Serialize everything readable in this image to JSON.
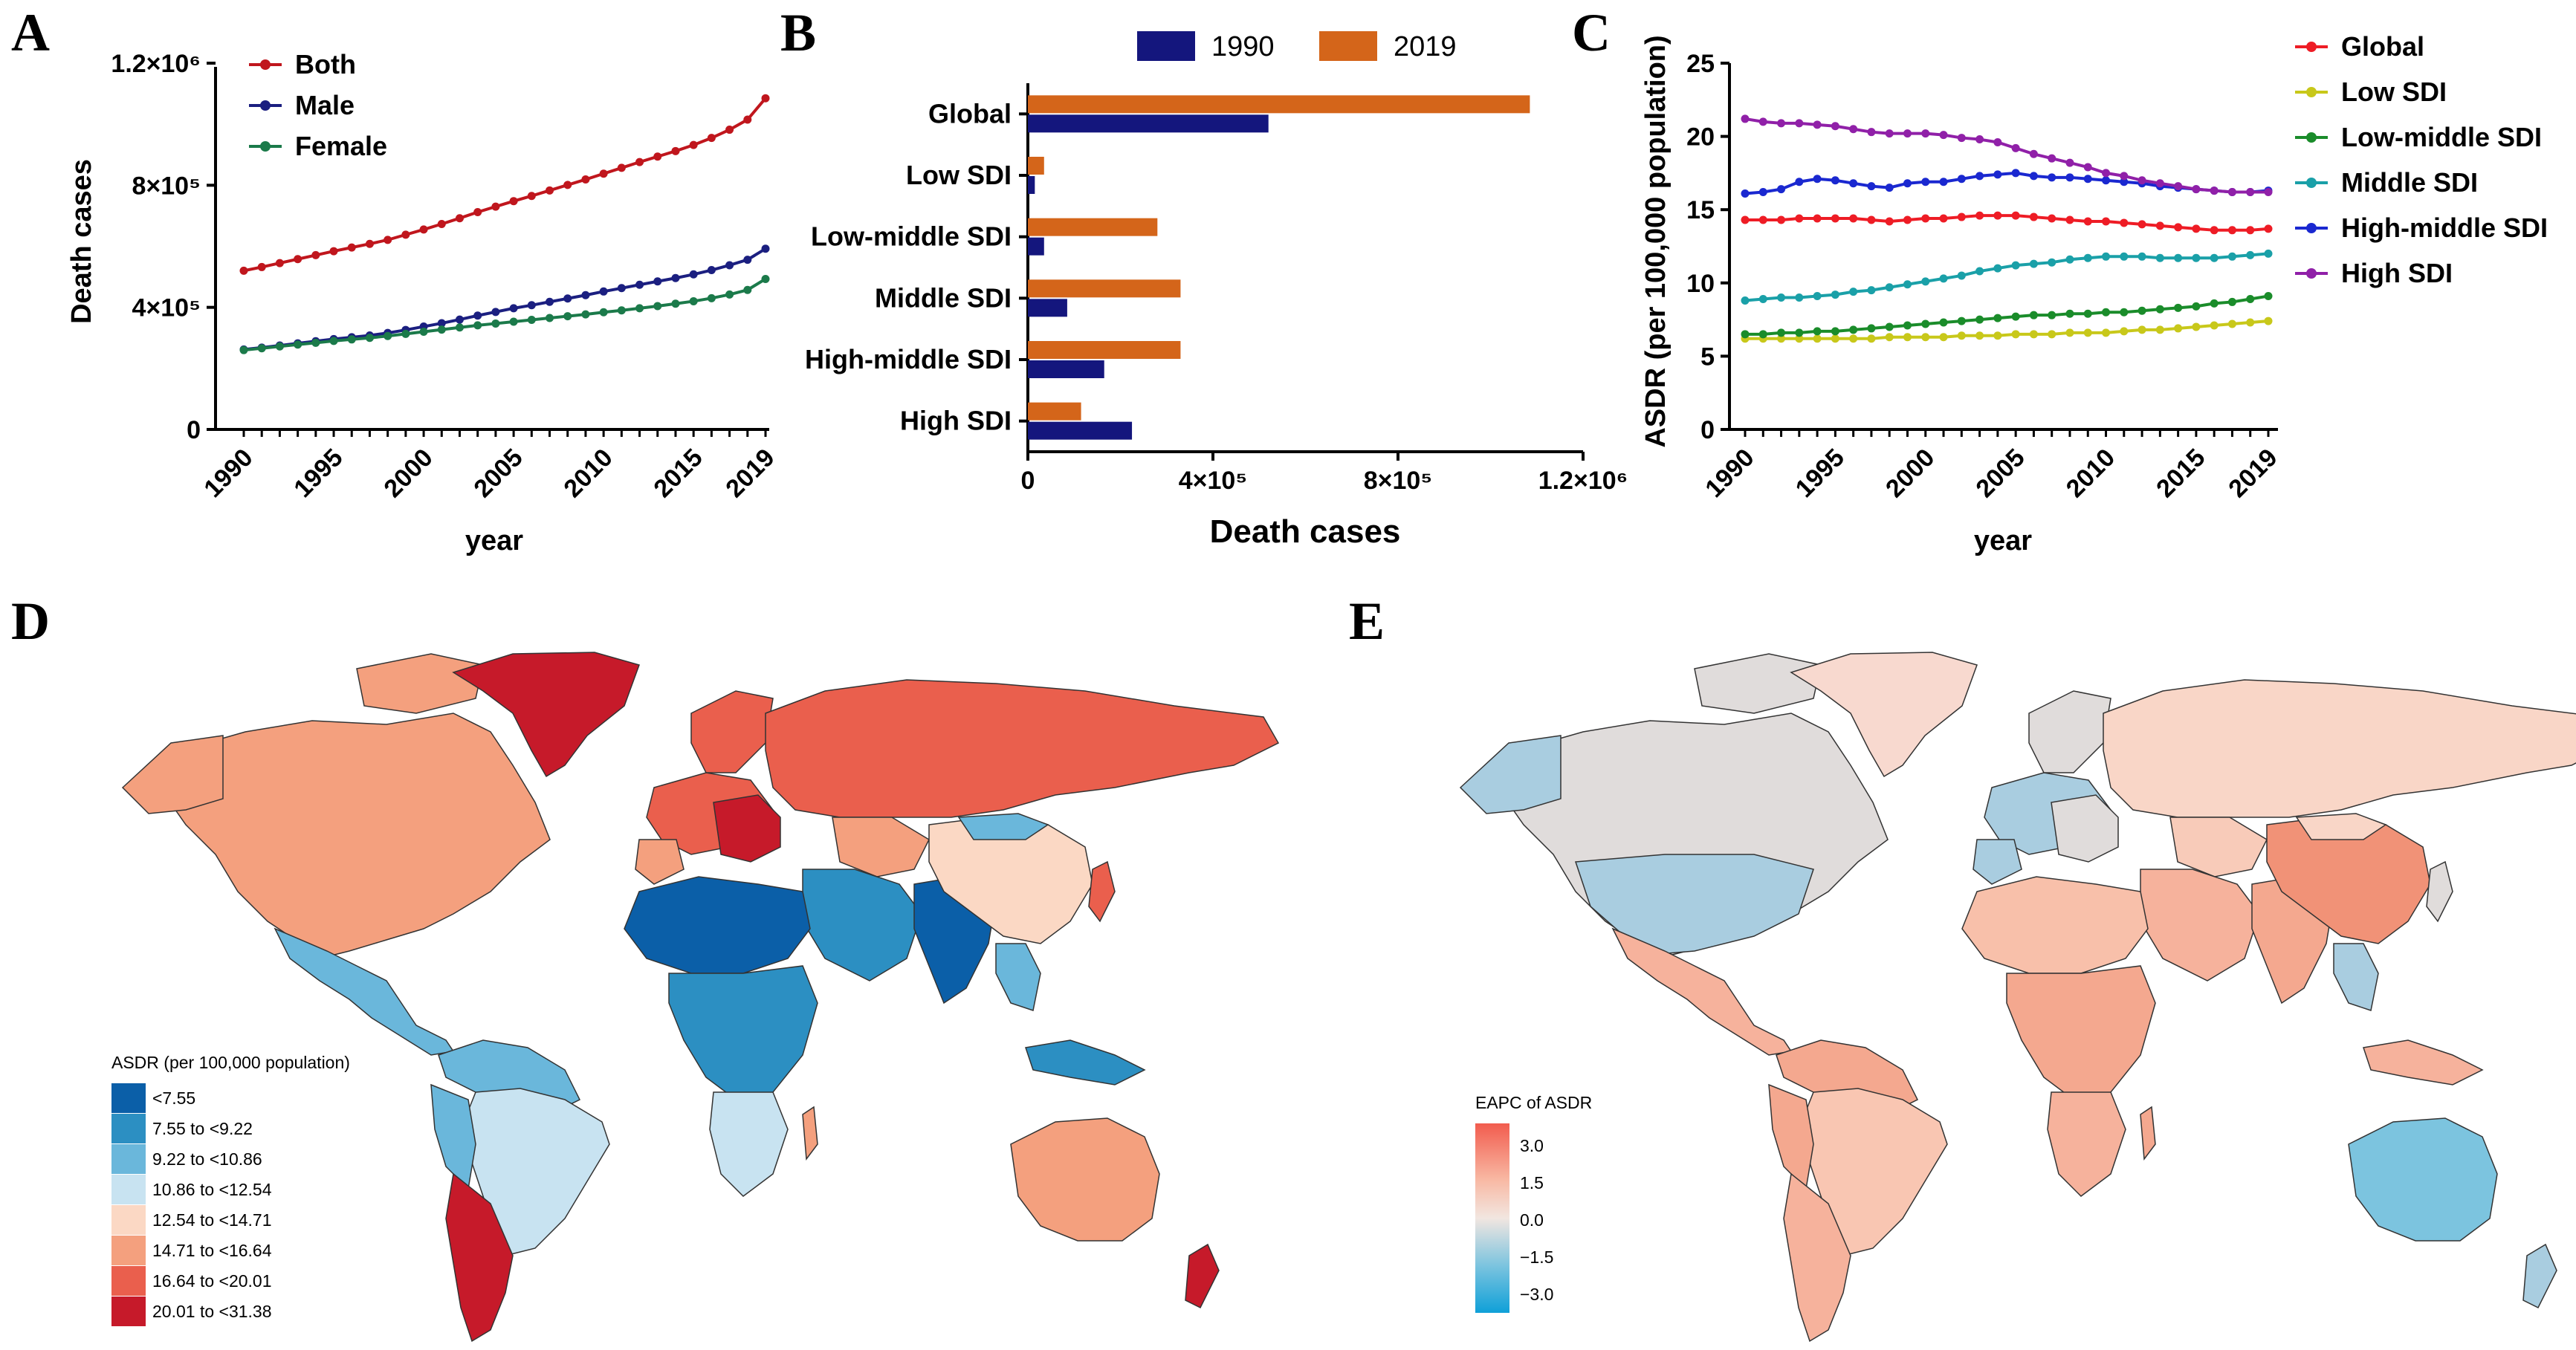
{
  "colors": {
    "both": "#c0161d",
    "male": "#1b1f80",
    "female": "#1b7a4a",
    "bar1990": "#14167d",
    "bar2019": "#d4651a",
    "global": "#ee1c25",
    "low": "#c8c81a",
    "lowmid": "#1a8c2a",
    "mid": "#1aa0a8",
    "highmid": "#1a28d0",
    "high": "#9020a8"
  },
  "panels": {
    "A": "A",
    "B": "B",
    "C": "C",
    "D": "D",
    "E": "E"
  },
  "chart_data": [
    {
      "id": "A",
      "type": "line",
      "title": "",
      "xlabel": "year",
      "ylabel": "Death cases",
      "ylim": [
        0,
        1200000
      ],
      "yticks": [
        "0",
        "4×10⁵",
        "8×10⁵",
        "1.2×10⁶"
      ],
      "xticks": [
        "1990",
        "1995",
        "2000",
        "2005",
        "2010",
        "2015",
        "2019"
      ],
      "x": [
        1990,
        1991,
        1992,
        1993,
        1994,
        1995,
        1996,
        1997,
        1998,
        1999,
        2000,
        2001,
        2002,
        2003,
        2004,
        2005,
        2006,
        2007,
        2008,
        2009,
        2010,
        2011,
        2012,
        2013,
        2014,
        2015,
        2016,
        2017,
        2018,
        2019
      ],
      "series": [
        {
          "name": "Both",
          "color_key": "both",
          "values": [
            520000,
            532000,
            545000,
            558000,
            571000,
            584000,
            596000,
            608000,
            621000,
            638000,
            655000,
            673000,
            692000,
            712000,
            730000,
            748000,
            765000,
            783000,
            801000,
            819000,
            838000,
            857000,
            876000,
            894000,
            912000,
            932000,
            955000,
            982000,
            1015000,
            1085000
          ]
        },
        {
          "name": "Male",
          "color_key": "male",
          "values": [
            262000,
            268000,
            275000,
            282000,
            289000,
            296000,
            302000,
            308000,
            316000,
            326000,
            337000,
            348000,
            360000,
            373000,
            385000,
            397000,
            407000,
            418000,
            429000,
            440000,
            452000,
            463000,
            474000,
            485000,
            496000,
            508000,
            522000,
            538000,
            556000,
            592000
          ]
        },
        {
          "name": "Female",
          "color_key": "female",
          "values": [
            260000,
            266000,
            272000,
            278000,
            284000,
            290000,
            295000,
            300000,
            306000,
            313000,
            320000,
            327000,
            334000,
            341000,
            347000,
            353000,
            359000,
            365000,
            371000,
            377000,
            384000,
            390000,
            397000,
            404000,
            412000,
            420000,
            430000,
            442000,
            457000,
            493000
          ]
        }
      ]
    },
    {
      "id": "B",
      "type": "bar",
      "orientation": "horizontal",
      "xlabel": "Death cases",
      "ylabel": "",
      "xlim": [
        0,
        1200000
      ],
      "xticks": [
        "0",
        "4×10⁵",
        "8×10⁵",
        "1.2×10⁶"
      ],
      "categories": [
        "Global",
        "Low SDI",
        "Low-middle SDI",
        "Middle SDI",
        "High-middle SDI",
        "High SDI"
      ],
      "series": [
        {
          "name": "1990",
          "color_key": "bar1990",
          "values": [
            520000,
            15000,
            35000,
            85000,
            165000,
            225000
          ]
        },
        {
          "name": "2019",
          "color_key": "bar2019",
          "values": [
            1085000,
            35000,
            280000,
            330000,
            330000,
            115000
          ]
        }
      ]
    },
    {
      "id": "C",
      "type": "line",
      "xlabel": "year",
      "ylabel": "ASDR (per 100,000 population)",
      "ylim": [
        0,
        25
      ],
      "yticks": [
        "0",
        "5",
        "10",
        "15",
        "20",
        "25"
      ],
      "xticks": [
        "1990",
        "1995",
        "2000",
        "2005",
        "2010",
        "2015",
        "2019"
      ],
      "x": [
        1990,
        1991,
        1992,
        1993,
        1994,
        1995,
        1996,
        1997,
        1998,
        1999,
        2000,
        2001,
        2002,
        2003,
        2004,
        2005,
        2006,
        2007,
        2008,
        2009,
        2010,
        2011,
        2012,
        2013,
        2014,
        2015,
        2016,
        2017,
        2018,
        2019
      ],
      "series": [
        {
          "name": "Global",
          "color_key": "global",
          "values": [
            14.3,
            14.3,
            14.3,
            14.4,
            14.4,
            14.4,
            14.4,
            14.3,
            14.2,
            14.3,
            14.4,
            14.4,
            14.5,
            14.6,
            14.6,
            14.6,
            14.5,
            14.4,
            14.3,
            14.2,
            14.2,
            14.1,
            14.0,
            13.9,
            13.8,
            13.7,
            13.6,
            13.6,
            13.6,
            13.7
          ]
        },
        {
          "name": "Low SDI",
          "color_key": "low",
          "values": [
            6.2,
            6.2,
            6.2,
            6.2,
            6.2,
            6.2,
            6.2,
            6.2,
            6.3,
            6.3,
            6.3,
            6.3,
            6.4,
            6.4,
            6.4,
            6.5,
            6.5,
            6.5,
            6.6,
            6.6,
            6.6,
            6.7,
            6.8,
            6.8,
            6.9,
            7.0,
            7.1,
            7.2,
            7.3,
            7.4
          ]
        },
        {
          "name": "Low-middle SDI",
          "color_key": "lowmid",
          "values": [
            6.5,
            6.5,
            6.6,
            6.6,
            6.7,
            6.7,
            6.8,
            6.9,
            7.0,
            7.1,
            7.2,
            7.3,
            7.4,
            7.5,
            7.6,
            7.7,
            7.8,
            7.8,
            7.9,
            7.9,
            8.0,
            8.0,
            8.1,
            8.2,
            8.3,
            8.4,
            8.6,
            8.7,
            8.9,
            9.1
          ]
        },
        {
          "name": "Middle SDI",
          "color_key": "mid",
          "values": [
            8.8,
            8.9,
            9.0,
            9.0,
            9.1,
            9.2,
            9.4,
            9.5,
            9.7,
            9.9,
            10.1,
            10.3,
            10.5,
            10.8,
            11.0,
            11.2,
            11.3,
            11.4,
            11.6,
            11.7,
            11.8,
            11.8,
            11.8,
            11.7,
            11.7,
            11.7,
            11.7,
            11.8,
            11.9,
            12.0
          ]
        },
        {
          "name": "High-middle SDI",
          "color_key": "highmid",
          "values": [
            16.1,
            16.2,
            16.4,
            16.9,
            17.1,
            17.0,
            16.8,
            16.6,
            16.5,
            16.8,
            16.9,
            16.9,
            17.1,
            17.3,
            17.4,
            17.5,
            17.3,
            17.2,
            17.2,
            17.1,
            17.0,
            16.9,
            16.8,
            16.6,
            16.5,
            16.4,
            16.3,
            16.2,
            16.2,
            16.3
          ]
        },
        {
          "name": "High SDI",
          "color_key": "high",
          "values": [
            21.2,
            21.0,
            20.9,
            20.9,
            20.8,
            20.7,
            20.5,
            20.3,
            20.2,
            20.2,
            20.2,
            20.1,
            19.9,
            19.8,
            19.6,
            19.2,
            18.8,
            18.5,
            18.2,
            17.9,
            17.5,
            17.3,
            17.0,
            16.8,
            16.6,
            16.4,
            16.3,
            16.2,
            16.2,
            16.2
          ]
        }
      ]
    },
    {
      "id": "D",
      "type": "map",
      "legend_title": "ASDR (per 100,000 population)",
      "legend_items": [
        {
          "label": "<7.55",
          "color": "#0b5fa8"
        },
        {
          "label": "7.55 to <9.22",
          "color": "#2c8fc2"
        },
        {
          "label": "9.22 to <10.86",
          "color": "#6ab7db"
        },
        {
          "label": "10.86 to <12.54",
          "color": "#c8e3f1"
        },
        {
          "label": "12.54 to <14.71",
          "color": "#fbd8c4"
        },
        {
          "label": "14.71 to <16.64",
          "color": "#f4a07e"
        },
        {
          "label": "16.64 to <20.01",
          "color": "#ea5f4d"
        },
        {
          "label": "20.01 to <31.38",
          "color": "#c61a2a"
        }
      ]
    },
    {
      "id": "E",
      "type": "map",
      "legend_title": "EAPC of ASDR",
      "legend_ticks": [
        "3.0",
        "1.5",
        "0.0",
        "−1.5",
        "−3.0"
      ],
      "gradient": [
        "#f25c4e",
        "#f8b9a4",
        "#f2e6e0",
        "#7cc4df",
        "#0fa0d8"
      ]
    }
  ]
}
